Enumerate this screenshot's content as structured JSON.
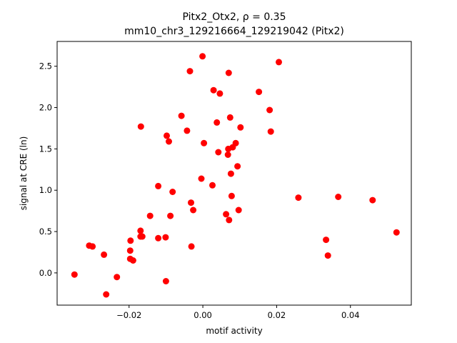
{
  "chart_data": {
    "type": "scatter",
    "title_line1": "Pitx2_Otx2, ρ = 0.35",
    "title_line2": "mm10_chr3_129216664_129219042 (Pitx2)",
    "xlabel": "motif activity",
    "ylabel": "signal at CRE (ln)",
    "xlim": [
      -0.0395,
      0.0565
    ],
    "ylim": [
      -0.39,
      2.8
    ],
    "x_ticks": [
      -0.02,
      0.0,
      0.02,
      0.04
    ],
    "x_tick_labels": [
      "−0.02",
      "0.00",
      "0.02",
      "0.04"
    ],
    "y_ticks": [
      0.0,
      0.5,
      1.0,
      1.5,
      2.0,
      2.5
    ],
    "y_tick_labels": [
      "0.0",
      "0.5",
      "1.0",
      "1.5",
      "2.0",
      "2.5"
    ],
    "grid": false,
    "marker_color": "#ff0000",
    "points": [
      {
        "x": -0.0348,
        "y": -0.02
      },
      {
        "x": -0.0308,
        "y": 0.33
      },
      {
        "x": -0.0299,
        "y": 0.32
      },
      {
        "x": -0.0268,
        "y": 0.22
      },
      {
        "x": -0.0262,
        "y": -0.26
      },
      {
        "x": -0.0233,
        "y": -0.05
      },
      {
        "x": -0.0197,
        "y": 0.17
      },
      {
        "x": -0.0197,
        "y": 0.27
      },
      {
        "x": -0.0196,
        "y": 0.39
      },
      {
        "x": -0.0189,
        "y": 0.15
      },
      {
        "x": -0.0169,
        "y": 0.51
      },
      {
        "x": -0.0169,
        "y": 0.44
      },
      {
        "x": -0.0164,
        "y": 0.44
      },
      {
        "x": -0.0168,
        "y": 1.77
      },
      {
        "x": -0.0143,
        "y": 0.69
      },
      {
        "x": -0.0121,
        "y": 1.05
      },
      {
        "x": -0.0121,
        "y": 0.42
      },
      {
        "x": -0.0101,
        "y": 0.43
      },
      {
        "x": -0.01,
        "y": -0.1
      },
      {
        "x": -0.0098,
        "y": 1.66
      },
      {
        "x": -0.0092,
        "y": 1.59
      },
      {
        "x": -0.0088,
        "y": 0.69
      },
      {
        "x": -0.0082,
        "y": 0.98
      },
      {
        "x": -0.0058,
        "y": 1.9
      },
      {
        "x": -0.0043,
        "y": 1.72
      },
      {
        "x": -0.0035,
        "y": 2.44
      },
      {
        "x": -0.0032,
        "y": 0.85
      },
      {
        "x": -0.0031,
        "y": 0.32
      },
      {
        "x": -0.0026,
        "y": 0.76
      },
      {
        "x": -0.0004,
        "y": 1.14
      },
      {
        "x": -0.0001,
        "y": 2.62
      },
      {
        "x": 0.0003,
        "y": 1.57
      },
      {
        "x": 0.0026,
        "y": 1.06
      },
      {
        "x": 0.0029,
        "y": 2.21
      },
      {
        "x": 0.0038,
        "y": 1.82
      },
      {
        "x": 0.0042,
        "y": 1.46
      },
      {
        "x": 0.0046,
        "y": 2.17
      },
      {
        "x": 0.0063,
        "y": 0.71
      },
      {
        "x": 0.0068,
        "y": 1.43
      },
      {
        "x": 0.0069,
        "y": 1.5
      },
      {
        "x": 0.007,
        "y": 2.42
      },
      {
        "x": 0.0071,
        "y": 0.64
      },
      {
        "x": 0.0074,
        "y": 1.88
      },
      {
        "x": 0.0076,
        "y": 1.2
      },
      {
        "x": 0.0078,
        "y": 0.93
      },
      {
        "x": 0.0081,
        "y": 1.52
      },
      {
        "x": 0.0089,
        "y": 1.57
      },
      {
        "x": 0.0094,
        "y": 1.29
      },
      {
        "x": 0.0097,
        "y": 0.76
      },
      {
        "x": 0.0102,
        "y": 1.76
      },
      {
        "x": 0.0152,
        "y": 2.19
      },
      {
        "x": 0.0181,
        "y": 1.97
      },
      {
        "x": 0.0184,
        "y": 1.71
      },
      {
        "x": 0.0206,
        "y": 2.55
      },
      {
        "x": 0.0259,
        "y": 0.91
      },
      {
        "x": 0.0334,
        "y": 0.4
      },
      {
        "x": 0.0339,
        "y": 0.21
      },
      {
        "x": 0.0367,
        "y": 0.92
      },
      {
        "x": 0.046,
        "y": 0.88
      },
      {
        "x": 0.0525,
        "y": 0.49
      }
    ]
  }
}
